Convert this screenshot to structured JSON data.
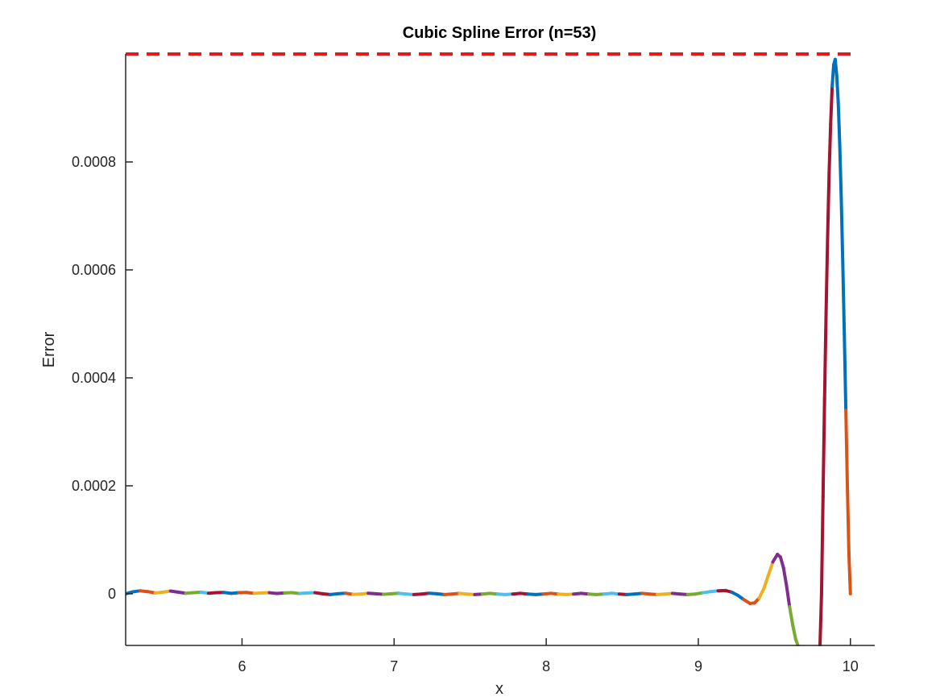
{
  "chart_data": {
    "type": "line",
    "title": "Cubic Spline Error (n=53)",
    "xlabel": "x",
    "ylabel": "Error",
    "xlim": [
      5.235,
      10.16
    ],
    "ylim": [
      -9.57e-05,
      0.001
    ],
    "xticks": [
      6,
      7,
      8,
      9,
      10
    ],
    "xtick_labels": [
      "6",
      "7",
      "8",
      "9",
      "10"
    ],
    "yticks": [
      0,
      0.0002,
      0.0004,
      0.0006,
      0.0008
    ],
    "ytick_labels": [
      "0",
      "0.0002",
      "0.0004",
      "0.0006",
      "0.0008"
    ],
    "grid": false,
    "legend": "none",
    "bound_line": {
      "y": 0.001,
      "color": "#e41a1c",
      "style": "dashed"
    },
    "segment_colors": [
      "#0072bd",
      "#d95319",
      "#edb120",
      "#7e2f8e",
      "#77ac30",
      "#4dbeee",
      "#a2142f"
    ],
    "series": [
      {
        "x": [
          5.235,
          5.28,
          5.33,
          5.38,
          5.43,
          5.48,
          5.53,
          5.58,
          5.63,
          5.68,
          5.73,
          5.78,
          5.83,
          5.88,
          5.93,
          5.98,
          6.03,
          6.08,
          6.13,
          6.18,
          6.23,
          6.28,
          6.33,
          6.38,
          6.43,
          6.48,
          6.53,
          6.58,
          6.63,
          6.68,
          6.73,
          6.78,
          6.83,
          6.88,
          6.93,
          6.98,
          7.03,
          7.08,
          7.13,
          7.18,
          7.23,
          7.28,
          7.33,
          7.38,
          7.43,
          7.48,
          7.53,
          7.58,
          7.63,
          7.68,
          7.73,
          7.78,
          7.83,
          7.88,
          7.93,
          7.98,
          8.03,
          8.08,
          8.13,
          8.18,
          8.23,
          8.28,
          8.33,
          8.38,
          8.43,
          8.48,
          8.53,
          8.58,
          8.63,
          8.68,
          8.73,
          8.78,
          8.83,
          8.88,
          8.93,
          8.98,
          9.03,
          9.08,
          9.13,
          9.18,
          9.22,
          9.26,
          9.3,
          9.34,
          9.37,
          9.4,
          9.43,
          9.46,
          9.49,
          9.52,
          9.54,
          9.56,
          9.58,
          9.6,
          9.62,
          9.64,
          9.655,
          9.8,
          9.81,
          9.82,
          9.83,
          9.84,
          9.85,
          9.86,
          9.87,
          9.88,
          9.89,
          9.9,
          9.91,
          9.92,
          9.93,
          9.94,
          9.95,
          9.96,
          9.97,
          9.98,
          9.99,
          10.0
        ],
        "y": [
          0.0,
          3.5e-06,
          5.5e-06,
          4e-06,
          1.5e-06,
          3e-06,
          5e-06,
          3e-06,
          1e-06,
          2e-06,
          3e-06,
          1e-06,
          2e-06,
          2.5e-06,
          8e-07,
          2e-06,
          2.5e-06,
          8e-07,
          1.5e-06,
          2e-06,
          5e-07,
          1.5e-06,
          2e-06,
          5e-07,
          1.5e-06,
          2e-06,
          0.0,
          -1.5e-06,
          0.0,
          1e-06,
          -1e-06,
          -5e-07,
          1e-06,
          0.0,
          -1e-06,
          0.0,
          1e-06,
          -5e-07,
          -1.5e-06,
          -5e-07,
          1e-06,
          0.0,
          -1.5e-06,
          -5e-07,
          8e-07,
          -5e-07,
          -1.5e-06,
          -5e-07,
          8e-07,
          -5e-07,
          -1.5e-06,
          -5e-07,
          8e-07,
          -5e-07,
          -1.5e-06,
          -5e-07,
          8e-07,
          -5e-07,
          -1.5e-06,
          -5e-07,
          8e-07,
          -5e-07,
          -1.5e-06,
          -5e-07,
          8e-07,
          -5e-07,
          -1.5e-06,
          -5e-07,
          8e-07,
          -5e-07,
          -1.5e-06,
          -5e-07,
          8e-07,
          -5e-07,
          -1.5e-06,
          -5e-07,
          2e-06,
          4e-06,
          5.5e-06,
          6e-06,
          3e-06,
          -3e-06,
          -1.1e-05,
          -1.8e-05,
          -1.7e-05,
          -8e-06,
          9e-06,
          3.4e-05,
          5.9e-05,
          7.3e-05,
          6.8e-05,
          4.8e-05,
          1.5e-05,
          -2.4e-05,
          -5.7e-05,
          -8.4e-05,
          -9.57e-05,
          -9.57e-05,
          -1e-06,
          0.00018,
          0.00036,
          0.00052,
          0.00066,
          0.00078,
          0.00087,
          0.00094,
          0.00098,
          0.00099,
          0.00096,
          0.00091,
          0.00083,
          0.00073,
          0.00061,
          0.00048,
          0.00034,
          0.0002,
          7.5e-05,
          0.0
        ]
      }
    ]
  }
}
